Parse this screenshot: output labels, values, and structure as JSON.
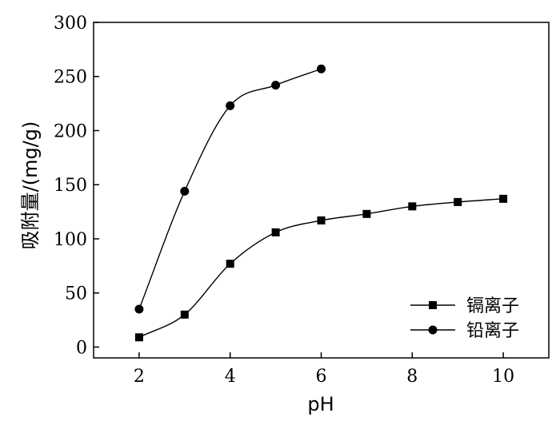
{
  "chart_data": {
    "type": "scatter",
    "xlabel": "pH",
    "ylabel": "吸附量/(mg/g)",
    "xlim": [
      1,
      11
    ],
    "ylim": [
      -10,
      300
    ],
    "xticks": [
      2,
      4,
      6,
      8,
      10
    ],
    "xtick_labels": [
      "2",
      "4",
      "6",
      "8",
      "10"
    ],
    "yticks": [
      0,
      50,
      100,
      150,
      200,
      250,
      300
    ],
    "ytick_labels": [
      "0",
      "50",
      "100",
      "150",
      "200",
      "250",
      "300"
    ],
    "grid": false,
    "legend_position": "bottom-right",
    "series": [
      {
        "name": "镉离子",
        "marker": "square",
        "smooth_line": true,
        "color": "#000000",
        "x": [
          2,
          3,
          4,
          5,
          6,
          7,
          8,
          9,
          10
        ],
        "y": [
          9,
          30,
          77,
          106,
          117,
          123,
          130,
          134,
          137
        ]
      },
      {
        "name": "铅离子",
        "marker": "circle",
        "smooth_line": true,
        "color": "#000000",
        "x": [
          2,
          3,
          4,
          5,
          6
        ],
        "y": [
          35,
          144,
          223,
          242,
          257
        ]
      }
    ]
  }
}
